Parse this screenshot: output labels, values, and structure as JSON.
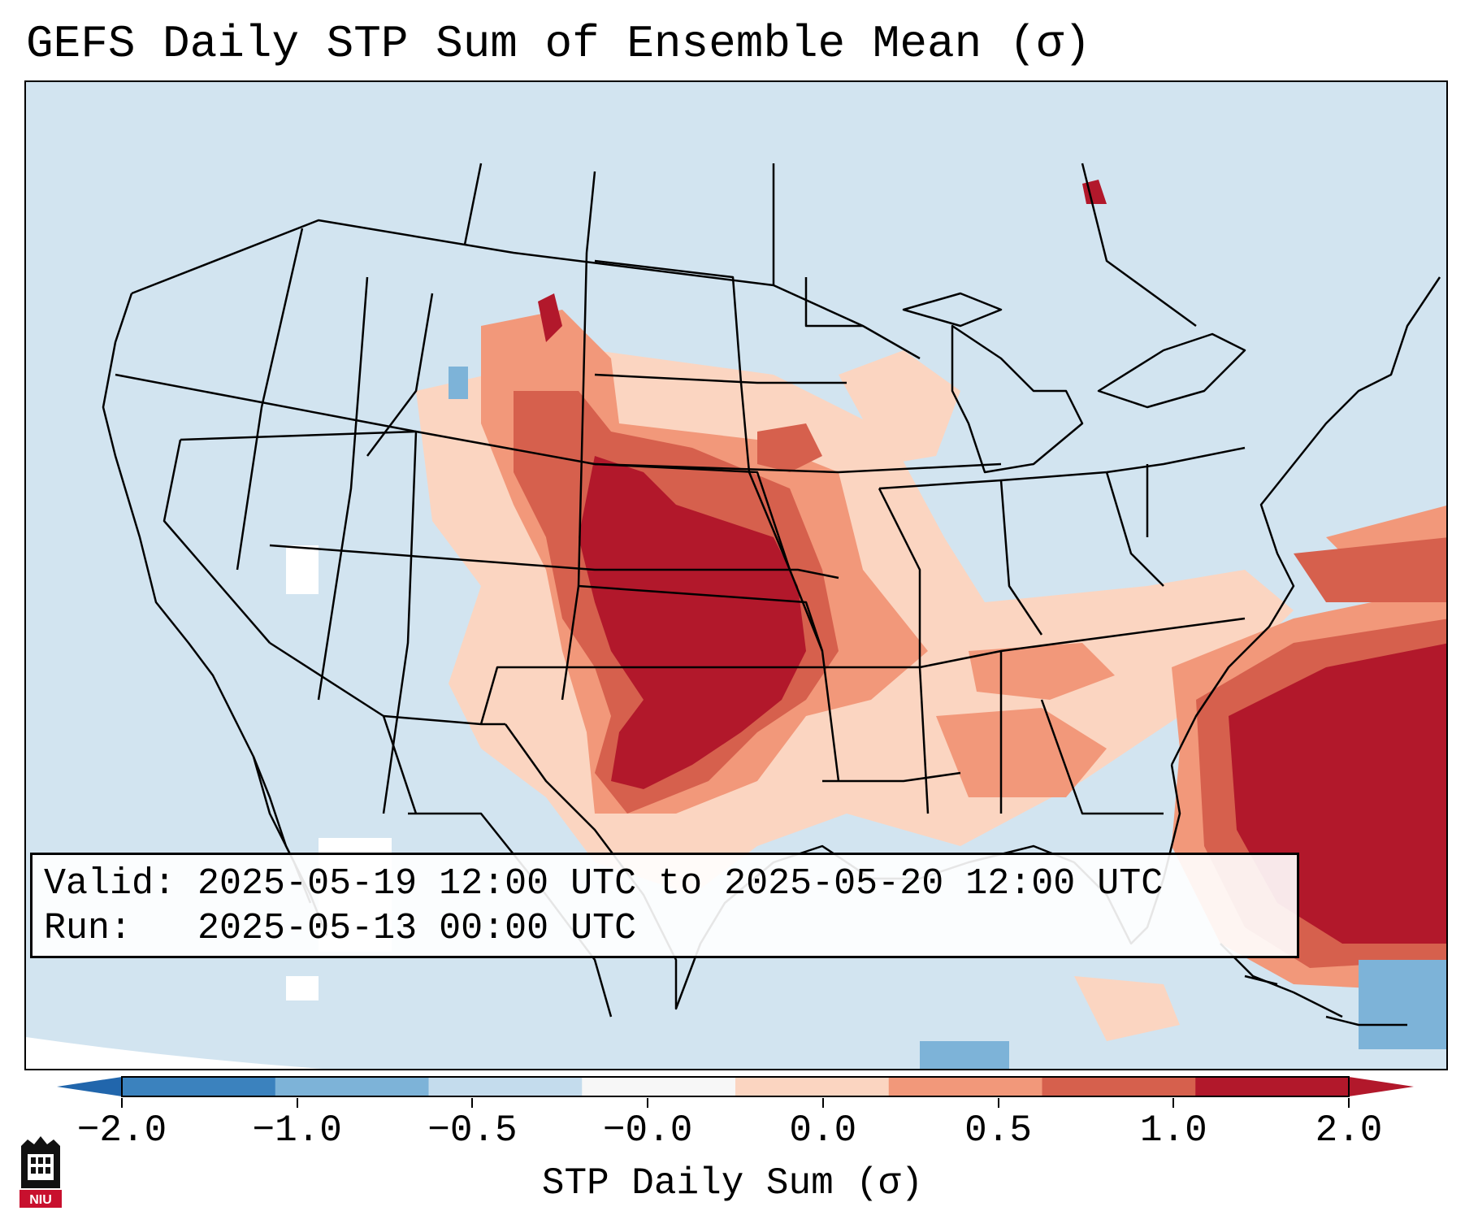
{
  "title": "GEFS Daily STP Sum of Ensemble Mean (σ)",
  "info": {
    "valid_label": "Valid:",
    "valid_value": "2025-05-19 12:00 UTC to 2025-05-20 12:00 UTC",
    "run_label": "Run:",
    "run_value": "2025-05-13 00:00 UTC"
  },
  "colorbar": {
    "label": "STP Daily Sum (σ)",
    "ticks": [
      "−2.0",
      "−1.0",
      "−0.5",
      "−0.0",
      "0.0",
      "0.5",
      "1.0",
      "2.0"
    ],
    "colors": [
      "#3b82be",
      "#7db3d8",
      "#c4dced",
      "#f7f7f7",
      "#fbd5c1",
      "#f2987a",
      "#d6604d",
      "#b2182b"
    ],
    "extend": "both"
  },
  "map": {
    "projection": "lambert-conformal",
    "region": "CONUS",
    "ocean_color": "#d2e4f0",
    "highlights": [
      {
        "region": "Southern/Central Plains (KS, OK, NE, N TX)",
        "level": "> 1.0"
      },
      {
        "region": "Western Atlantic off Carolinas",
        "level": "> 1.0"
      },
      {
        "region": "Mid-Mississippi/Ohio Valley & Southeast",
        "level": "0.0 to 1.0"
      }
    ]
  },
  "logo": {
    "text": "NIU"
  }
}
